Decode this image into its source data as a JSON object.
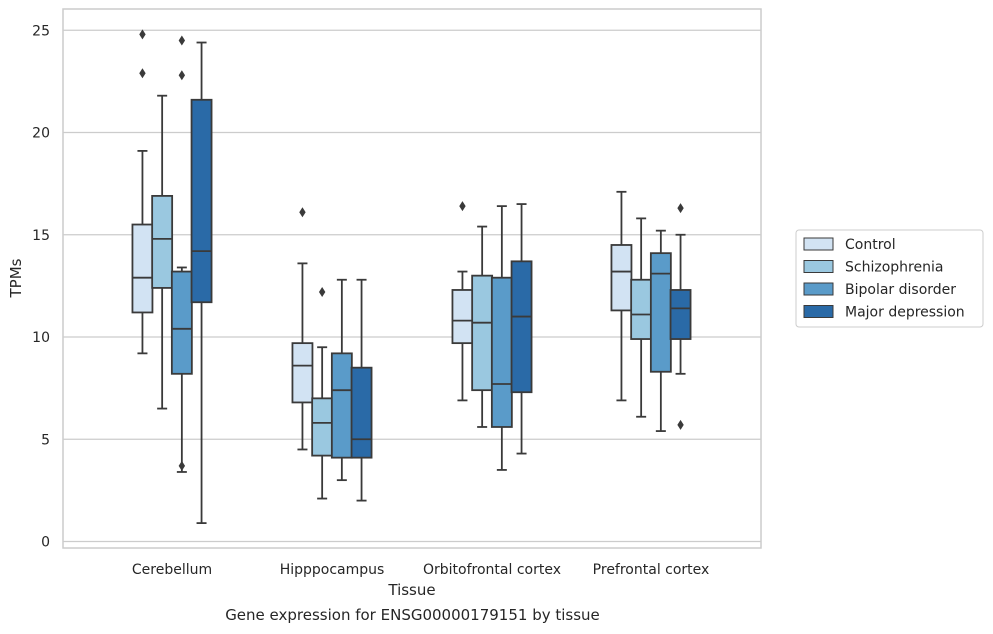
{
  "caption": "Gene expression for ENSG00000179151 by tissue",
  "chart_data": {
    "type": "box",
    "xlabel": "Tissue",
    "ylabel": "TPMs",
    "ylim": [
      -0.3,
      26.0
    ],
    "yticks": [
      0,
      5,
      10,
      15,
      20,
      25
    ],
    "grid": "horizontal",
    "legend_position": "right",
    "categories": [
      "Cerebellum",
      "Hipppocampus",
      "Orbitofrontal cortex",
      "Prefrontal cortex"
    ],
    "series": [
      {
        "name": "Control",
        "color": "#d2e3f3",
        "boxes": [
          {
            "whislo": 9.2,
            "q1": 11.2,
            "med": 12.9,
            "q3": 15.5,
            "whishi": 19.1,
            "fliers": [
              22.9,
              24.8
            ]
          },
          {
            "whislo": 4.5,
            "q1": 6.8,
            "med": 8.6,
            "q3": 9.7,
            "whishi": 13.6,
            "fliers": [
              16.1
            ]
          },
          {
            "whislo": 6.9,
            "q1": 9.7,
            "med": 10.8,
            "q3": 12.3,
            "whishi": 13.2,
            "fliers": [
              16.4
            ]
          },
          {
            "whislo": 6.9,
            "q1": 11.3,
            "med": 13.2,
            "q3": 14.5,
            "whishi": 17.1,
            "fliers": []
          }
        ]
      },
      {
        "name": "Schizophrenia",
        "color": "#9ac8e0",
        "boxes": [
          {
            "whislo": 6.5,
            "q1": 12.4,
            "med": 14.8,
            "q3": 16.9,
            "whishi": 21.8,
            "fliers": []
          },
          {
            "whislo": 2.1,
            "q1": 4.2,
            "med": 5.8,
            "q3": 7.0,
            "whishi": 9.5,
            "fliers": [
              12.2
            ]
          },
          {
            "whislo": 5.6,
            "q1": 7.4,
            "med": 10.7,
            "q3": 13.0,
            "whishi": 15.4,
            "fliers": []
          },
          {
            "whislo": 6.1,
            "q1": 9.9,
            "med": 11.1,
            "q3": 12.8,
            "whishi": 15.8,
            "fliers": []
          }
        ]
      },
      {
        "name": "Bipolar disorder",
        "color": "#5a9bc9",
        "boxes": [
          {
            "whislo": 3.4,
            "q1": 8.2,
            "med": 10.4,
            "q3": 13.2,
            "whishi": 13.4,
            "fliers": [
              3.7,
              22.8,
              24.5
            ]
          },
          {
            "whislo": 3.0,
            "q1": 4.1,
            "med": 7.4,
            "q3": 9.2,
            "whishi": 12.8,
            "fliers": []
          },
          {
            "whislo": 3.5,
            "q1": 5.6,
            "med": 7.7,
            "q3": 12.9,
            "whishi": 16.4,
            "fliers": []
          },
          {
            "whislo": 5.4,
            "q1": 8.3,
            "med": 13.1,
            "q3": 14.1,
            "whishi": 15.2,
            "fliers": []
          }
        ]
      },
      {
        "name": "Major depression",
        "color": "#2a6aa7",
        "boxes": [
          {
            "whislo": 0.9,
            "q1": 11.7,
            "med": 14.2,
            "q3": 21.6,
            "whishi": 24.4,
            "fliers": []
          },
          {
            "whislo": 2.0,
            "q1": 4.1,
            "med": 5.0,
            "q3": 8.5,
            "whishi": 12.8,
            "fliers": []
          },
          {
            "whislo": 4.3,
            "q1": 7.3,
            "med": 11.0,
            "q3": 13.7,
            "whishi": 16.5,
            "fliers": []
          },
          {
            "whislo": 8.2,
            "q1": 9.9,
            "med": 11.4,
            "q3": 12.3,
            "whishi": 15.0,
            "fliers": [
              5.7,
              16.3
            ]
          }
        ]
      }
    ]
  }
}
